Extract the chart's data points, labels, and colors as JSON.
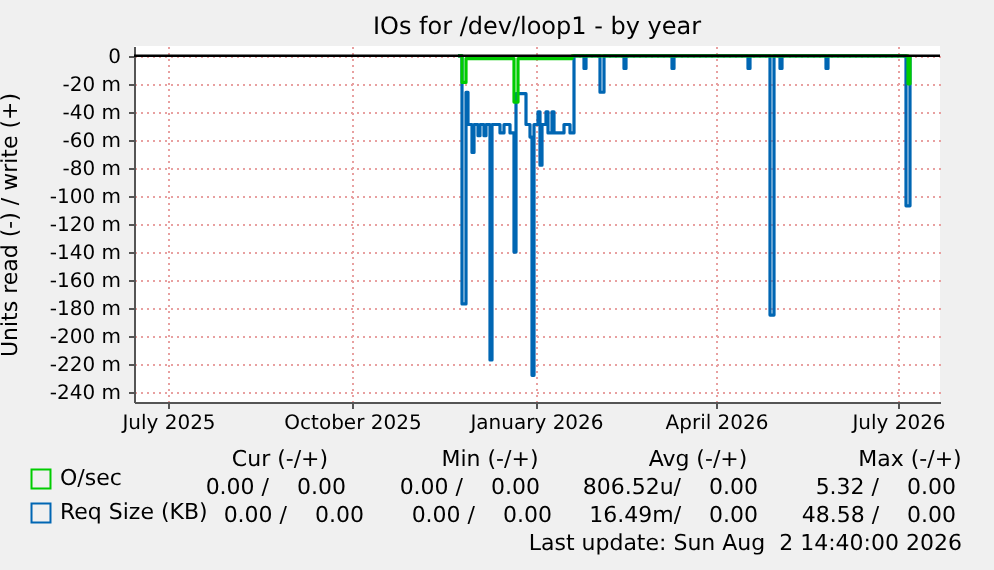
{
  "chart_data": {
    "type": "step",
    "title": "IOs for /dev/loop1 - by year",
    "ylabel": "Units read (-) / write (+)",
    "xlim": [
      "2025-06-14",
      "2026-07-22"
    ],
    "xticks": [
      {
        "value": "2025-07",
        "label": "July 2025"
      },
      {
        "value": "2025-10",
        "label": "October 2025"
      },
      {
        "value": "2026-01",
        "label": "January 2026"
      },
      {
        "value": "2026-04",
        "label": "April 2026"
      },
      {
        "value": "2026-07",
        "label": "July 2026"
      }
    ],
    "ylim": [
      -247,
      7
    ],
    "yticks": [
      0,
      {
        "value": -20,
        "label": "-20 m"
      },
      {
        "value": -40,
        "label": "-40 m"
      },
      {
        "value": -60,
        "label": "-60 m"
      },
      {
        "value": -80,
        "label": "-80 m"
      },
      {
        "value": -100,
        "label": "-100 m"
      },
      {
        "value": -120,
        "label": "-120 m"
      },
      {
        "value": -140,
        "label": "-140 m"
      },
      {
        "value": -160,
        "label": "-160 m"
      },
      {
        "value": -180,
        "label": "-180 m"
      },
      {
        "value": -200,
        "label": "-200 m"
      },
      {
        "value": -220,
        "label": "-220 m"
      },
      {
        "value": -240,
        "label": "-240 m"
      }
    ],
    "grid": true,
    "legend": "bottom left",
    "series": [
      {
        "name": "O/sec",
        "color": "#00cc00",
        "x": [
          "2025-11-23",
          "2025-11-25",
          "2025-11-27",
          "2025-12-21",
          "2025-12-23",
          "2026-01-19",
          "2026-07-06",
          "2026-07-07"
        ],
        "values": [
          0,
          -19,
          -2,
          -33,
          -2,
          0,
          -20,
          0
        ]
      },
      {
        "name": "Req Size (KB)",
        "color": "#0066b3",
        "x": [
          "2025-11-23",
          "2025-11-25",
          "2025-11-27",
          "2025-11-28",
          "2025-11-30",
          "2025-12-01",
          "2025-12-03",
          "2025-12-04",
          "2025-12-06",
          "2025-12-07",
          "2025-12-09",
          "2025-12-10",
          "2025-12-14",
          "2025-12-16",
          "2025-12-19",
          "2025-12-21",
          "2025-12-22",
          "2025-12-27",
          "2025-12-29",
          "2025-12-30",
          "2025-12-31",
          "2026-01-02",
          "2026-01-03",
          "2026-01-04",
          "2026-01-06",
          "2026-01-07",
          "2026-01-09",
          "2026-01-10",
          "2026-01-15",
          "2026-01-18",
          "2026-01-20",
          "2026-01-25",
          "2026-01-26",
          "2026-02-02",
          "2026-02-04",
          "2026-02-14",
          "2026-02-15",
          "2026-03-10",
          "2026-03-11",
          "2026-04-17",
          "2026-04-18",
          "2026-04-28",
          "2026-04-30",
          "2026-05-03",
          "2026-05-04",
          "2026-05-26",
          "2026-05-27",
          "2026-07-05",
          "2026-07-07"
        ],
        "values": [
          0,
          -177,
          -26,
          -49,
          -69,
          -49,
          -57,
          -49,
          -57,
          -49,
          -217,
          -49,
          -55,
          -49,
          -55,
          -140,
          -27,
          -49,
          -58,
          -228,
          -49,
          -40,
          -78,
          -49,
          -40,
          -55,
          -40,
          -55,
          -49,
          -55,
          0,
          -9,
          0,
          -26,
          0,
          -9,
          0,
          -9,
          0,
          -9,
          0,
          -185,
          0,
          -9,
          0,
          -9,
          0,
          -107,
          0
        ]
      }
    ],
    "ref_lines": [
      {
        "axis": "y",
        "value": 0,
        "color": "#000000"
      }
    ],
    "annotations": [
      "Cur (-/+)",
      "Min (-/+)",
      "Avg (-/+)",
      "Max (-/+)",
      "0.00 /    0.00",
      "0.00 /    0.00",
      "806.52u/    0.00",
      "5.32 /    0.00",
      "0.00 /    0.00",
      "0.00 /    0.00",
      "16.49m/    0.00",
      "48.58 /    0.00",
      "Last update: Sun Aug  2 14:40:00 2026"
    ]
  }
}
